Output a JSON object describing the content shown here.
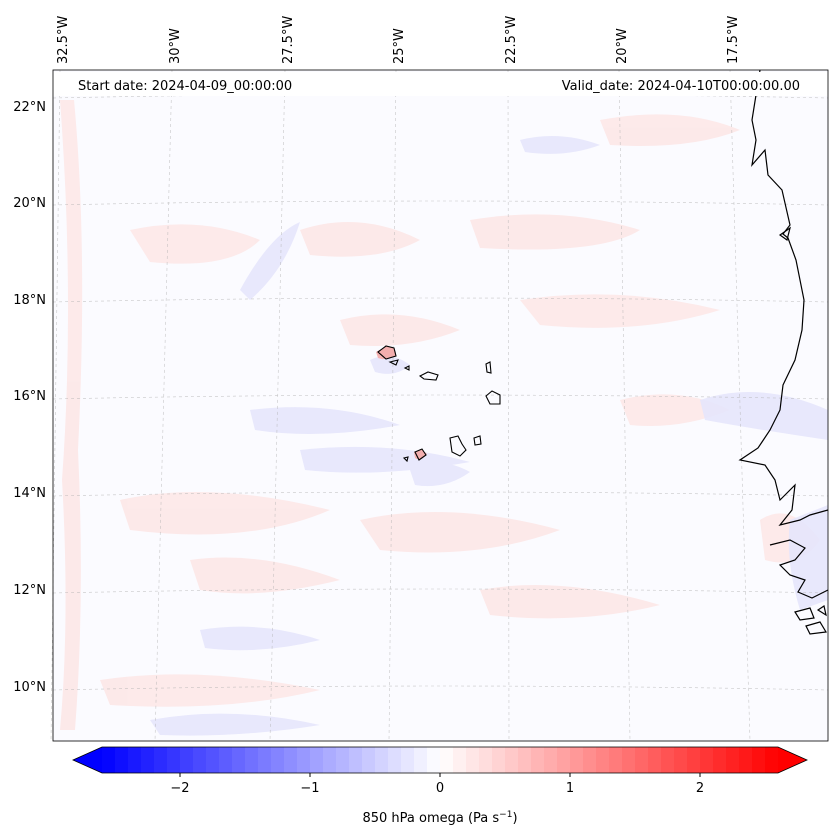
{
  "header": {
    "start_date": "Start date: 2024-04-09_00:00:00",
    "valid_date": "Valid_date: 2024-04-10T00:00:00.00"
  },
  "map": {
    "lon_labels": [
      "32.5°W",
      "30°W",
      "27.5°W",
      "25°W",
      "22.5°W",
      "20°W",
      "17.5°W"
    ],
    "lat_labels": [
      "22°N",
      "20°N",
      "18°N",
      "16°N",
      "14°N",
      "12°N",
      "10°N"
    ],
    "colors": {
      "coastline": "#000000",
      "grid": "#b0b0b0",
      "positive": "#ff0000",
      "negative": "#0000ff"
    }
  },
  "colorbar": {
    "label_prefix": "850 hPa omega (Pa s",
    "label_exp": "−1",
    "label_suffix": ")",
    "ticks": [
      "−2",
      "−1",
      "0",
      "1",
      "2"
    ],
    "tick_values": [
      -2,
      -1,
      0,
      1,
      2
    ],
    "vmin": -2.6,
    "vmax": 2.6,
    "levels": 52,
    "cmap": "bwr"
  }
}
